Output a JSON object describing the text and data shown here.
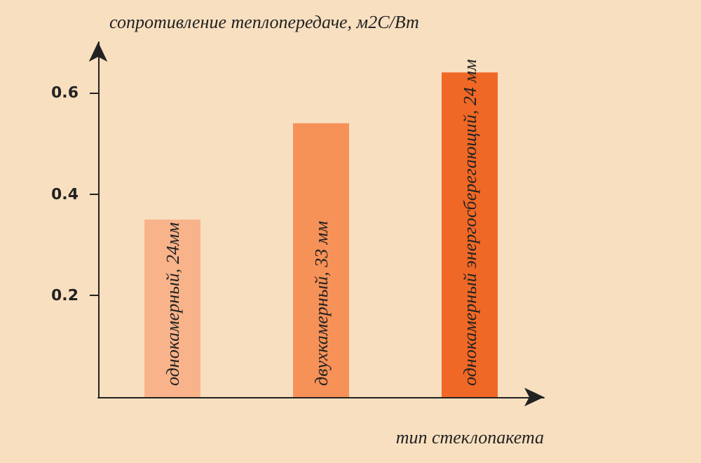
{
  "chart_data": {
    "type": "bar",
    "ylabel": "сопротивление теплопередаче, м2С/Вт",
    "xlabel": "тип стеклопакета",
    "categories": [
      "однокамерный, 24мм",
      "двухкамерный, 33 мм",
      "однокамерный энергосберегающий, 24 мм"
    ],
    "values": [
      0.35,
      0.54,
      0.64
    ],
    "colors": [
      "#f9b38a",
      "#f69158",
      "#f06826"
    ],
    "ylim": [
      0,
      0.7
    ],
    "yticks": [
      0.2,
      0.4,
      0.6
    ],
    "grid": false
  }
}
